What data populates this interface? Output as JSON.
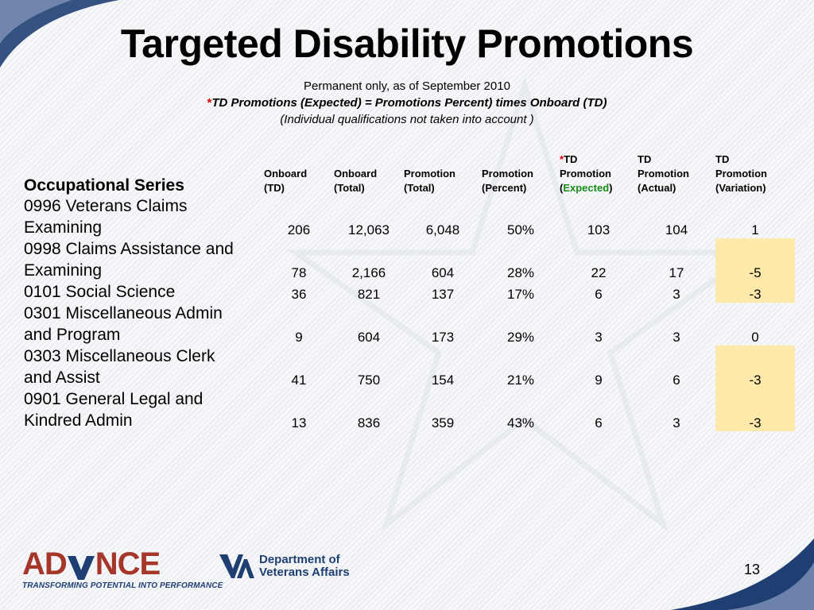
{
  "slide": {
    "title": "Targeted Disability Promotions",
    "subtitle_line1": "Permanent only, as of September 2010",
    "subtitle_line2_asterisk": "*",
    "subtitle_line2": "TD Promotions (Expected) = Promotions Percent) times Onboard (TD)",
    "subtitle_line3": "(Individual qualifications not taken into account )",
    "page_number": "13"
  },
  "table": {
    "series_header": "Occupational Series",
    "columns": {
      "onboard_td": {
        "line1": "Onboard",
        "line2": "(TD)"
      },
      "onboard_total": {
        "line1": "Onboard",
        "line2": "(Total)"
      },
      "promotion_total": {
        "line1": "Promotion",
        "line2": "(Total)"
      },
      "promotion_percent": {
        "line1": "Promotion",
        "line2": "(Percent)"
      },
      "td_expected": {
        "asterisk": "*",
        "line1": "TD",
        "line2": "Promotion",
        "open": "(",
        "line3": "Expected",
        "close": ")"
      },
      "td_actual": {
        "line1": "TD",
        "line2": "Promotion",
        "line3": "(Actual)"
      },
      "td_variation": {
        "line1": "TD",
        "line2": "Promotion",
        "line3": "(Variation)"
      }
    },
    "rows": [
      {
        "series_line1": "0996 Veterans Claims",
        "series_line2": "Examining",
        "onboard_td": "206",
        "onboard_total": "12,063",
        "promotion_total": "6,048",
        "promotion_percent": "50%",
        "td_expected": "103",
        "td_actual": "104",
        "td_variation": "1",
        "variation_highlight": false
      },
      {
        "series_line1": "0998 Claims Assistance and",
        "series_line2": "Examining",
        "onboard_td": "78",
        "onboard_total": "2,166",
        "promotion_total": "604",
        "promotion_percent": "28%",
        "td_expected": "22",
        "td_actual": "17",
        "td_variation": "-5",
        "variation_highlight": true
      },
      {
        "series_line1": "0101 Social Science",
        "series_line2": "",
        "onboard_td": "36",
        "onboard_total": "821",
        "promotion_total": "137",
        "promotion_percent": "17%",
        "td_expected": "6",
        "td_actual": "3",
        "td_variation": "-3",
        "variation_highlight": true
      },
      {
        "series_line1": "0301 Miscellaneous Admin",
        "series_line2": "and Program",
        "onboard_td": "9",
        "onboard_total": "604",
        "promotion_total": "173",
        "promotion_percent": "29%",
        "td_expected": "3",
        "td_actual": "3",
        "td_variation": "0",
        "variation_highlight": false
      },
      {
        "series_line1": "0303 Miscellaneous Clerk",
        "series_line2": "and Assist",
        "onboard_td": "41",
        "onboard_total": "750",
        "promotion_total": "154",
        "promotion_percent": "21%",
        "td_expected": "9",
        "td_actual": "6",
        "td_variation": "-3",
        "variation_highlight": true
      },
      {
        "series_line1": "0901 General Legal and",
        "series_line2": "Kindred Admin",
        "onboard_td": "13",
        "onboard_total": "836",
        "promotion_total": "359",
        "promotion_percent": "43%",
        "td_expected": "6",
        "td_actual": "3",
        "td_variation": "-3",
        "variation_highlight": true
      }
    ]
  },
  "logos": {
    "advance_prefix": "AD",
    "advance_suffix": "NCE",
    "advance_tagline": "TRANSFORMING POTENTIAL INTO PERFORMANCE",
    "va_line1": "Department of",
    "va_line2": "Veterans Affairs"
  },
  "colors": {
    "highlight_cell": "#fde9a9",
    "expected_word": "#1a8c1a",
    "asterisk": "#e00000",
    "brand_red": "#a6362a",
    "brand_navy": "#1f3f73"
  }
}
